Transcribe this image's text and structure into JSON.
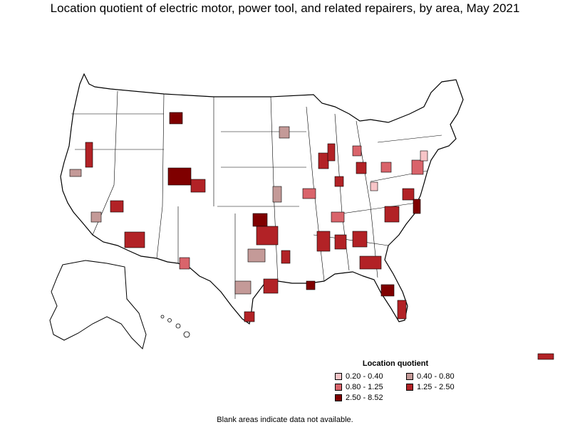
{
  "title": "Location quotient of electric motor, power tool, and related repairers, by area, May 2021",
  "legend": {
    "title": "Location quotient",
    "items": [
      {
        "label": "0.20 - 0.40",
        "color": "#f7c5c8"
      },
      {
        "label": "0.40 - 0.80",
        "color": "#c49a98"
      },
      {
        "label": "0.80 - 1.25",
        "color": "#d9646b"
      },
      {
        "label": "1.25 - 2.50",
        "color": "#b22226"
      },
      {
        "label": "2.50 - 8.52",
        "color": "#7f0000"
      }
    ]
  },
  "footnote": "Blank areas indicate data not available."
}
